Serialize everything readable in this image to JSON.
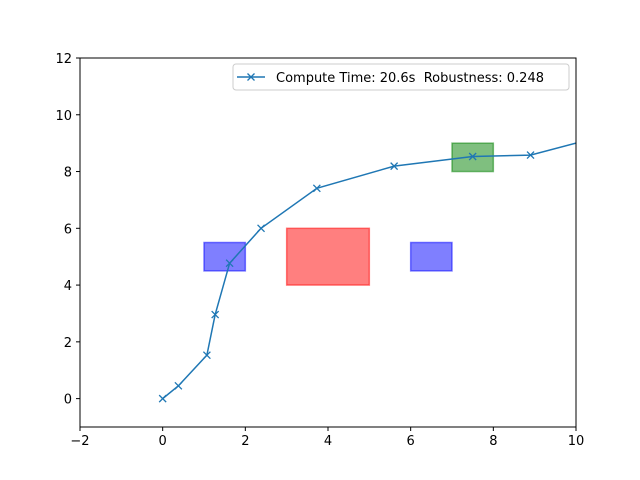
{
  "chart_data": {
    "type": "line",
    "title": "",
    "xlabel": "",
    "ylabel": "",
    "xlim": [
      -2,
      10
    ],
    "ylim": [
      -1,
      12
    ],
    "xticks": [
      -2,
      0,
      2,
      4,
      6,
      8,
      10
    ],
    "yticks": [
      0,
      2,
      4,
      6,
      8,
      10,
      12
    ],
    "grid": false,
    "legend_position": "top-right",
    "series": [
      {
        "name": "Compute Time: 20.6s  Robustness: 0.248",
        "color": "#1f77b4",
        "marker": "x",
        "points": [
          {
            "x": 0.0,
            "y": 0.0,
            "marker": true
          },
          {
            "x": 0.38,
            "y": 0.45,
            "marker": true
          },
          {
            "x": 1.07,
            "y": 1.53,
            "marker": true
          },
          {
            "x": 1.27,
            "y": 2.96,
            "marker": true
          },
          {
            "x": 1.62,
            "y": 4.77,
            "marker": true
          },
          {
            "x": 2.38,
            "y": 6.0,
            "marker": true
          },
          {
            "x": 3.73,
            "y": 7.41,
            "marker": true
          },
          {
            "x": 5.6,
            "y": 8.19,
            "marker": true
          },
          {
            "x": 7.5,
            "y": 8.53,
            "marker": true
          },
          {
            "x": 8.9,
            "y": 8.58,
            "marker": true
          },
          {
            "x": 10.0,
            "y": 9.0,
            "marker": false
          }
        ]
      }
    ],
    "regions": [
      {
        "name": "blue-region-1",
        "x": [
          1,
          2
        ],
        "y": [
          4.5,
          5.5
        ],
        "color": "#0000ff",
        "opacity": 0.5
      },
      {
        "name": "red-region",
        "x": [
          3,
          5
        ],
        "y": [
          4,
          6
        ],
        "color": "#ff0000",
        "opacity": 0.5
      },
      {
        "name": "blue-region-2",
        "x": [
          6,
          7
        ],
        "y": [
          4.5,
          5.5
        ],
        "color": "#0000ff",
        "opacity": 0.5
      },
      {
        "name": "green-region",
        "x": [
          7,
          8
        ],
        "y": [
          8,
          9
        ],
        "color": "#008000",
        "opacity": 0.5
      }
    ]
  }
}
